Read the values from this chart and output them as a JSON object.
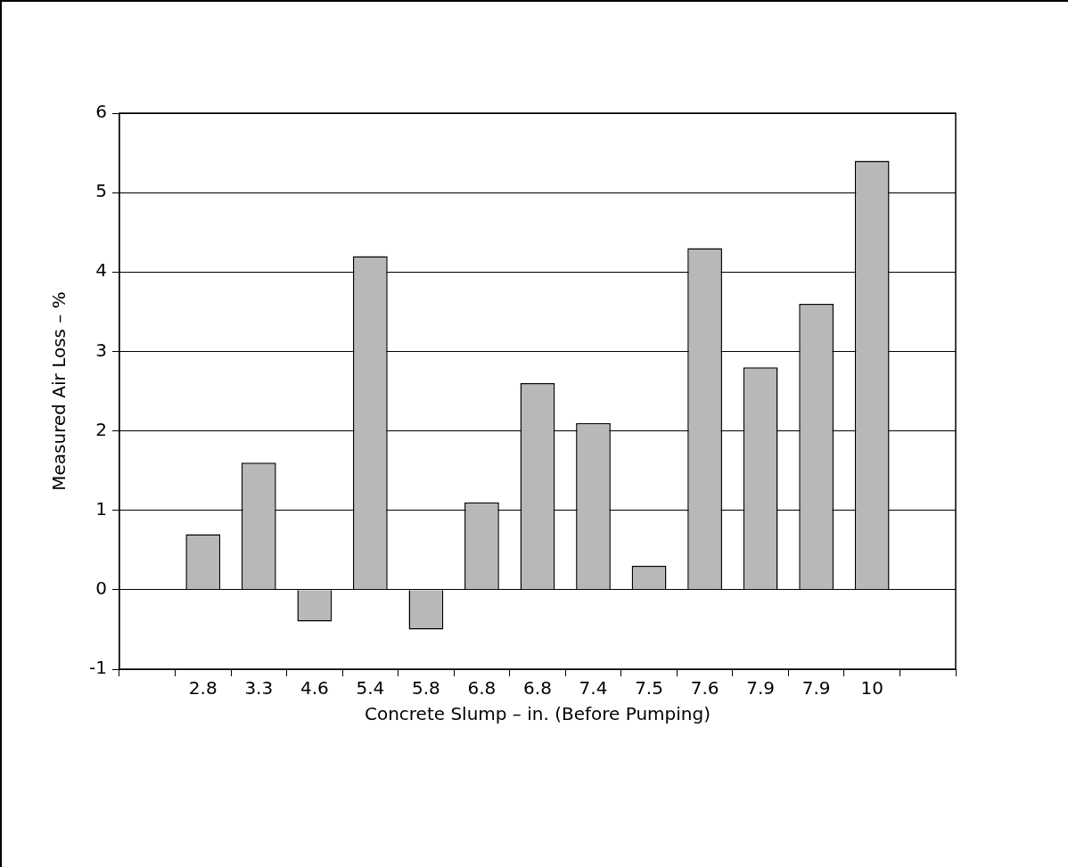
{
  "chart_data": {
    "type": "bar",
    "xlabel": "Concrete Slump – in. (Before Pumping)",
    "ylabel": "Measured Air Loss – %",
    "categories": [
      null,
      "2.8",
      "3.3",
      "4.6",
      "5.4",
      "5.8",
      "6.8",
      "6.8",
      "7.4",
      "7.5",
      "7.6",
      "7.9",
      "7.9",
      "10",
      null
    ],
    "values": [
      null,
      0.7,
      1.6,
      -0.4,
      4.2,
      -0.5,
      1.1,
      2.6,
      2.1,
      0.3,
      4.3,
      2.8,
      3.6,
      5.4,
      null
    ],
    "color": "#b8b8b8",
    "ylim": [
      -1,
      6
    ],
    "yticks": [
      -1,
      0,
      1,
      2,
      3,
      4,
      5,
      6
    ],
    "grid": "y",
    "legend": false
  }
}
